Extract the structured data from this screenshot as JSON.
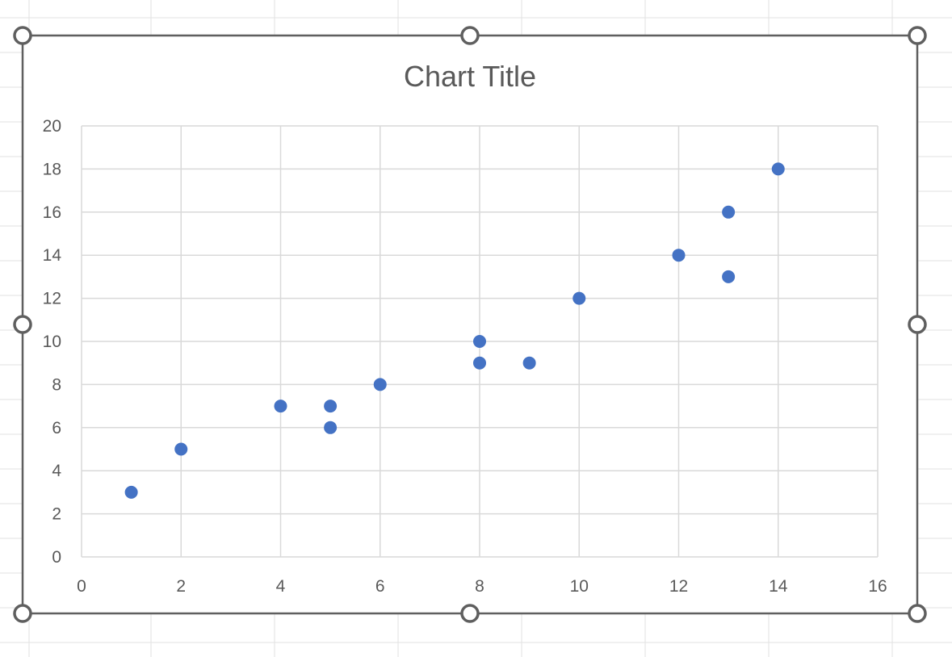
{
  "chart_data": {
    "type": "scatter",
    "title": "Chart Title",
    "xlabel": "",
    "ylabel": "",
    "xlim": [
      0,
      16
    ],
    "ylim": [
      0,
      20
    ],
    "x_ticks": [
      "0",
      "2",
      "4",
      "6",
      "8",
      "10",
      "12",
      "14",
      "16"
    ],
    "y_ticks": [
      "0",
      "2",
      "4",
      "6",
      "8",
      "10",
      "12",
      "14",
      "16",
      "18",
      "20"
    ],
    "grid": true,
    "legend": "none",
    "series": [
      {
        "color": "#4472C4",
        "points": [
          {
            "x": 1,
            "y": 3
          },
          {
            "x": 2,
            "y": 5
          },
          {
            "x": 4,
            "y": 7
          },
          {
            "x": 5,
            "y": 7
          },
          {
            "x": 5,
            "y": 6
          },
          {
            "x": 6,
            "y": 8
          },
          {
            "x": 8,
            "y": 10
          },
          {
            "x": 8,
            "y": 9
          },
          {
            "x": 9,
            "y": 9
          },
          {
            "x": 10,
            "y": 12
          },
          {
            "x": 12,
            "y": 14
          },
          {
            "x": 13,
            "y": 16
          },
          {
            "x": 13,
            "y": 13
          },
          {
            "x": 14,
            "y": 18
          }
        ]
      }
    ]
  },
  "colors": {
    "gridline": "#d9d9d9",
    "sheet_gridline": "#e2e2e2",
    "selection_border": "#5f5f5f",
    "marker": "#4472C4",
    "text": "#595959"
  }
}
